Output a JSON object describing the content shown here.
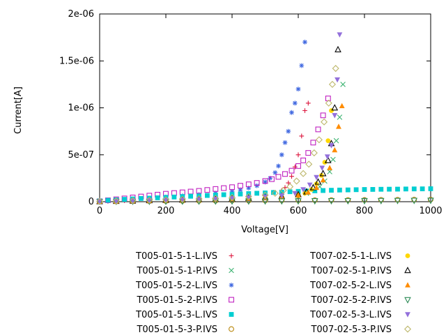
{
  "chart": {
    "xlabel": "Voltage[V]",
    "ylabel": "Current[A]"
  },
  "chart_data": {
    "type": "scatter",
    "title": "",
    "xlabel": "Voltage[V]",
    "ylabel": "Current[A]",
    "xlim": [
      0,
      1000
    ],
    "ylim": [
      0,
      2e-06
    ],
    "grid": false,
    "legend_position": "below, two columns, markers right of right-aligned labels",
    "x_ticks": [
      {
        "v": 0,
        "label": "0"
      },
      {
        "v": 200,
        "label": "200"
      },
      {
        "v": 400,
        "label": "400"
      },
      {
        "v": 600,
        "label": "600"
      },
      {
        "v": 800,
        "label": "800"
      },
      {
        "v": 1000,
        "label": "1000"
      }
    ],
    "y_ticks": [
      {
        "v": 0,
        "label": "0"
      },
      {
        "v": 5e-07,
        "label": "5e-07"
      },
      {
        "v": 1e-06,
        "label": "1e-06"
      },
      {
        "v": 1.5e-06,
        "label": "1.5e-06"
      },
      {
        "v": 2e-06,
        "label": "2e-06"
      }
    ],
    "series": [
      {
        "name": "T005-01-5-1-L.IVS",
        "color": "#dc143c",
        "marker": "plus",
        "x": [
          0,
          25,
          50,
          75,
          100,
          150,
          200,
          250,
          300,
          350,
          400,
          450,
          500,
          525,
          550,
          560,
          570,
          580,
          590,
          600,
          610,
          620,
          630
        ],
        "y": [
          2e-09,
          5e-09,
          8e-09,
          1.1e-08,
          1.4e-08,
          2e-08,
          2.6e-08,
          3.2e-08,
          3.8e-08,
          4.5e-08,
          5.5e-08,
          6.8e-08,
          8.5e-08,
          1e-07,
          1.2e-07,
          1.5e-07,
          2e-07,
          2.7e-07,
          3.7e-07,
          5e-07,
          7e-07,
          9.7e-07,
          1.05e-06
        ]
      },
      {
        "name": "T005-01-5-1-P.IVS",
        "color": "#3cb371",
        "marker": "cross",
        "x": [
          0,
          50,
          100,
          150,
          200,
          250,
          300,
          350,
          400,
          450,
          500,
          550,
          600,
          625,
          650,
          665,
          680,
          695,
          705,
          715,
          725,
          735
        ],
        "y": [
          2e-09,
          5e-09,
          8e-09,
          1.1e-08,
          1.5e-08,
          1.9e-08,
          2.3e-08,
          2.7e-08,
          3.2e-08,
          3.7e-08,
          4.4e-08,
          5.4e-08,
          7e-08,
          9e-08,
          1.2e-07,
          1.6e-07,
          2.2e-07,
          3.2e-07,
          4.5e-07,
          6.5e-07,
          9e-07,
          1.25e-06
        ]
      },
      {
        "name": "T005-01-5-2-L.IVS",
        "color": "#4169e1",
        "marker": "asterisk",
        "x": [
          0,
          25,
          50,
          75,
          100,
          150,
          200,
          250,
          300,
          350,
          400,
          425,
          450,
          475,
          500,
          515,
          530,
          540,
          550,
          560,
          570,
          580,
          590,
          600,
          610,
          620
        ],
        "y": [
          3e-09,
          8e-09,
          1.4e-08,
          2e-08,
          2.6e-08,
          3.8e-08,
          5e-08,
          6.2e-08,
          7.5e-08,
          9e-08,
          1.1e-07,
          1.25e-07,
          1.45e-07,
          1.7e-07,
          2.1e-07,
          2.5e-07,
          3.1e-07,
          3.8e-07,
          5e-07,
          6.3e-07,
          7.5e-07,
          9.5e-07,
          1.05e-06,
          1.2e-06,
          1.45e-06,
          1.7e-06
        ]
      },
      {
        "name": "T005-01-5-2-P.IVS",
        "color": "#c020c0",
        "marker": "square-open",
        "x": [
          0,
          25,
          50,
          75,
          100,
          125,
          150,
          175,
          200,
          225,
          250,
          275,
          300,
          325,
          350,
          375,
          400,
          425,
          450,
          475,
          500,
          520,
          540,
          560,
          580,
          600,
          615,
          630,
          645,
          660,
          675,
          690
        ],
        "y": [
          5e-09,
          1.5e-08,
          2.5e-08,
          3.5e-08,
          4.5e-08,
          5.5e-08,
          6.5e-08,
          7.5e-08,
          8.5e-08,
          9.2e-08,
          1e-07,
          1.08e-07,
          1.15e-07,
          1.25e-07,
          1.35e-07,
          1.45e-07,
          1.55e-07,
          1.7e-07,
          1.85e-07,
          2e-07,
          2.2e-07,
          2.4e-07,
          2.65e-07,
          2.95e-07,
          3.3e-07,
          3.8e-07,
          4.4e-07,
          5.2e-07,
          6.3e-07,
          7.7e-07,
          9.2e-07,
          1.1e-06
        ]
      },
      {
        "name": "T005-01-5-3-L.IVS",
        "color": "#00ced1",
        "marker": "square-filled",
        "x": [
          0,
          25,
          50,
          75,
          100,
          125,
          150,
          175,
          200,
          225,
          250,
          275,
          300,
          325,
          350,
          375,
          400,
          425,
          450,
          475,
          500,
          525,
          550,
          575,
          600,
          625,
          650,
          675,
          700,
          725,
          750,
          775,
          800,
          825,
          850,
          875,
          900,
          925,
          950,
          975,
          1000
        ],
        "y": [
          8e-09,
          1.5e-08,
          2e-08,
          2.5e-08,
          3e-08,
          3.4e-08,
          3.8e-08,
          4.2e-08,
          4.6e-08,
          5e-08,
          5.4e-08,
          5.8e-08,
          6.2e-08,
          6.6e-08,
          7e-08,
          7.4e-08,
          7.8e-08,
          8.2e-08,
          8.6e-08,
          9e-08,
          9.4e-08,
          9.8e-08,
          1.02e-07,
          1.06e-07,
          1.1e-07,
          1.13e-07,
          1.16e-07,
          1.19e-07,
          1.22e-07,
          1.24e-07,
          1.26e-07,
          1.28e-07,
          1.3e-07,
          1.31e-07,
          1.32e-07,
          1.33e-07,
          1.34e-07,
          1.35e-07,
          1.36e-07,
          1.37e-07,
          1.38e-07
        ]
      },
      {
        "name": "T005-01-5-3-P.IVS",
        "color": "#b8860b",
        "marker": "circle-open",
        "x": [
          0,
          50,
          100,
          150,
          200,
          250,
          300,
          350,
          400,
          450,
          500,
          550,
          600,
          650,
          700,
          750,
          800,
          850,
          900,
          950,
          1000
        ],
        "y": [
          3e-09,
          4e-09,
          5e-09,
          6e-09,
          7e-09,
          8e-09,
          9e-09,
          1e-08,
          1.1e-08,
          1.2e-08,
          1.3e-08,
          1.4e-08,
          1.5e-08,
          1.6e-08,
          1.7e-08,
          1.8e-08,
          1.9e-08,
          2e-08,
          2.1e-08,
          2.2e-08,
          2.3e-08
        ]
      },
      {
        "name": "T007-02-5-1-L.IVS",
        "color": "#ffd700",
        "marker": "circle-filled",
        "x": [
          0,
          50,
          100,
          150,
          200,
          250,
          300,
          350,
          400,
          450,
          500,
          550,
          600,
          620,
          640,
          655,
          670,
          680,
          690,
          700
        ],
        "y": [
          2e-09,
          5e-09,
          8e-09,
          1.1e-08,
          1.4e-08,
          1.7e-08,
          2.1e-08,
          2.5e-08,
          2.9e-08,
          3.4e-08,
          4.1e-08,
          5e-08,
          7e-08,
          9e-08,
          1.3e-07,
          1.9e-07,
          2.8e-07,
          4.2e-07,
          6.5e-07,
          9.7e-07
        ]
      },
      {
        "name": "T007-02-5-1-P.IVS",
        "color": "#000000",
        "marker": "triangle-up-open",
        "x": [
          0,
          50,
          100,
          150,
          200,
          250,
          300,
          350,
          400,
          450,
          500,
          550,
          600,
          625,
          645,
          660,
          675,
          690,
          700,
          710,
          720
        ],
        "y": [
          2e-09,
          5e-09,
          8e-09,
          1.2e-08,
          1.5e-08,
          1.9e-08,
          2.3e-08,
          2.7e-08,
          3.1e-08,
          3.7e-08,
          4.5e-08,
          5.6e-08,
          7.5e-08,
          1.05e-07,
          1.5e-07,
          2.1e-07,
          3e-07,
          4.4e-07,
          6.2e-07,
          1e-06,
          1.62e-06
        ]
      },
      {
        "name": "T007-02-5-2-L.IVS",
        "color": "#ff8c00",
        "marker": "triangle-up-filled",
        "x": [
          0,
          50,
          100,
          150,
          200,
          250,
          300,
          350,
          400,
          450,
          500,
          550,
          600,
          630,
          655,
          675,
          695,
          710,
          722,
          732
        ],
        "y": [
          2e-09,
          4e-09,
          7e-09,
          1e-08,
          1.3e-08,
          1.6e-08,
          2e-08,
          2.4e-08,
          2.8e-08,
          3.4e-08,
          4.2e-08,
          5.2e-08,
          7e-08,
          1e-07,
          1.5e-07,
          2.3e-07,
          3.6e-07,
          5.5e-07,
          8e-07,
          1.02e-06
        ]
      },
      {
        "name": "T007-02-5-2-P.IVS",
        "color": "#2e8b57",
        "marker": "triangle-down-open",
        "x": [
          0,
          50,
          100,
          150,
          200,
          250,
          300,
          350,
          400,
          450,
          500,
          550,
          600,
          650,
          700,
          750,
          800,
          850,
          900,
          950,
          1000
        ],
        "y": [
          2e-09,
          2.5e-09,
          3e-09,
          3.5e-09,
          4e-09,
          4.5e-09,
          5e-09,
          5.5e-09,
          6e-09,
          6.5e-09,
          7e-09,
          7.5e-09,
          8e-09,
          8.5e-09,
          9e-09,
          9.5e-09,
          1e-08,
          1.1e-08,
          1.2e-08,
          1.3e-08,
          1.4e-08
        ]
      },
      {
        "name": "T007-02-5-3-L.IVS",
        "color": "#9370db",
        "marker": "triangle-down-filled",
        "x": [
          0,
          50,
          100,
          150,
          200,
          250,
          300,
          350,
          400,
          450,
          500,
          550,
          590,
          615,
          635,
          655,
          672,
          688,
          700,
          710,
          718,
          725
        ],
        "y": [
          2e-09,
          5e-09,
          9e-09,
          1.3e-08,
          1.7e-08,
          2.1e-08,
          2.5e-08,
          3e-08,
          3.6e-08,
          4.3e-08,
          5.2e-08,
          6.5e-08,
          9e-08,
          1.3e-07,
          1.8e-07,
          2.6e-07,
          3.6e-07,
          4.8e-07,
          6e-07,
          9.2e-07,
          1.3e-06,
          1.78e-06
        ]
      },
      {
        "name": "T007-02-5-3-P.IVS",
        "color": "#bdb76b",
        "marker": "diamond-open",
        "x": [
          0,
          50,
          100,
          150,
          200,
          250,
          300,
          350,
          400,
          450,
          500,
          530,
          555,
          575,
          595,
          615,
          632,
          648,
          663,
          678,
          692,
          703,
          713
        ],
        "y": [
          3e-09,
          7e-09,
          1.1e-08,
          1.5e-08,
          2e-08,
          2.5e-08,
          3e-08,
          3.6e-08,
          4.4e-08,
          5.4e-08,
          7e-08,
          9e-08,
          1.2e-07,
          1.6e-07,
          2.2e-07,
          3e-07,
          4e-07,
          5.2e-07,
          6.6e-07,
          8.5e-07,
          1.05e-06,
          1.25e-06,
          1.42e-06
        ]
      }
    ]
  }
}
